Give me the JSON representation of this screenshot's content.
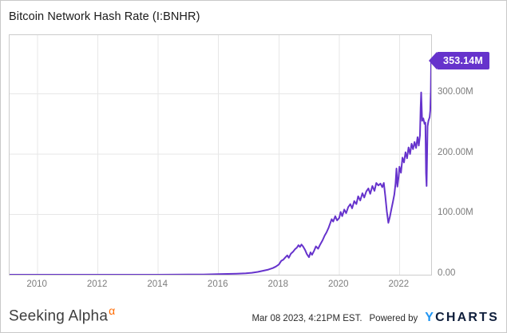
{
  "header": {
    "title": "Bitcoin Network Hash Rate (I:BNHR)"
  },
  "badge": {
    "label": "353.14M",
    "color": "#6633cc"
  },
  "footer": {
    "brand": "Seeking Alpha",
    "brand_alpha": "α",
    "brand_alpha_color": "#ff6a00",
    "timestamp": "Mar 08 2023, 4:21PM EST.",
    "powered_by": "Powered by",
    "ycharts_y": "Y",
    "ycharts_rest": "CHARTS",
    "ycharts_y_color": "#2196f3",
    "ycharts_rest_color": "#101f3c"
  },
  "chart_data": {
    "type": "line",
    "title": "Bitcoin Network Hash Rate (I:BNHR)",
    "series_name": "Bitcoin Network Hash Rate",
    "unit": "M",
    "line_color": "#6633cc",
    "grid": true,
    "grid_color": "#e7e7e7",
    "legend_position": "none",
    "last_value_label": "353.14M",
    "x_range": [
      2009.07,
      2023.05
    ],
    "y_range": [
      0,
      397
    ],
    "x_ticks": [
      {
        "value": 2010,
        "label": "2010"
      },
      {
        "value": 2012,
        "label": "2012"
      },
      {
        "value": 2014,
        "label": "2014"
      },
      {
        "value": 2016,
        "label": "2016"
      },
      {
        "value": 2018,
        "label": "2018"
      },
      {
        "value": 2020,
        "label": "2020"
      },
      {
        "value": 2022,
        "label": "2022"
      }
    ],
    "y_ticks": [
      {
        "value": 300,
        "label": "300.00M"
      },
      {
        "value": 200,
        "label": "200.00M"
      },
      {
        "value": 100,
        "label": "100.00M"
      },
      {
        "value": 0,
        "label": "0.00"
      }
    ],
    "points": [
      [
        2009.07,
        0
      ],
      [
        2010,
        0
      ],
      [
        2011,
        0
      ],
      [
        2012,
        0
      ],
      [
        2013,
        0
      ],
      [
        2013.5,
        0.01
      ],
      [
        2014,
        0.03
      ],
      [
        2014.5,
        0.1
      ],
      [
        2015,
        0.3
      ],
      [
        2015.5,
        0.45
      ],
      [
        2016,
        0.9
      ],
      [
        2016.3,
        1.3
      ],
      [
        2016.6,
        1.7
      ],
      [
        2016.9,
        2.4
      ],
      [
        2017.1,
        3.2
      ],
      [
        2017.3,
        4.6
      ],
      [
        2017.5,
        6.8
      ],
      [
        2017.65,
        8.5
      ],
      [
        2017.8,
        11
      ],
      [
        2017.9,
        13.5
      ],
      [
        2018.0,
        17
      ],
      [
        2018.08,
        23
      ],
      [
        2018.15,
        25
      ],
      [
        2018.22,
        29
      ],
      [
        2018.28,
        32
      ],
      [
        2018.33,
        28
      ],
      [
        2018.4,
        35
      ],
      [
        2018.47,
        38
      ],
      [
        2018.53,
        42
      ],
      [
        2018.6,
        45
      ],
      [
        2018.65,
        49
      ],
      [
        2018.7,
        46
      ],
      [
        2018.75,
        50
      ],
      [
        2018.8,
        47
      ],
      [
        2018.87,
        41
      ],
      [
        2018.93,
        34
      ],
      [
        2019.0,
        29
      ],
      [
        2019.05,
        37
      ],
      [
        2019.1,
        33
      ],
      [
        2019.17,
        40
      ],
      [
        2019.23,
        47
      ],
      [
        2019.3,
        43
      ],
      [
        2019.37,
        50
      ],
      [
        2019.45,
        57
      ],
      [
        2019.52,
        65
      ],
      [
        2019.58,
        70
      ],
      [
        2019.65,
        78
      ],
      [
        2019.7,
        85
      ],
      [
        2019.75,
        92
      ],
      [
        2019.8,
        88
      ],
      [
        2019.87,
        97
      ],
      [
        2019.93,
        90
      ],
      [
        2020.0,
        94
      ],
      [
        2020.05,
        104
      ],
      [
        2020.1,
        97
      ],
      [
        2020.17,
        108
      ],
      [
        2020.23,
        102
      ],
      [
        2020.3,
        112
      ],
      [
        2020.37,
        117
      ],
      [
        2020.43,
        110
      ],
      [
        2020.5,
        122
      ],
      [
        2020.57,
        117
      ],
      [
        2020.63,
        130
      ],
      [
        2020.7,
        123
      ],
      [
        2020.77,
        135
      ],
      [
        2020.83,
        128
      ],
      [
        2020.9,
        138
      ],
      [
        2020.97,
        143
      ],
      [
        2021.03,
        134
      ],
      [
        2021.1,
        147
      ],
      [
        2021.17,
        139
      ],
      [
        2021.23,
        152
      ],
      [
        2021.3,
        148
      ],
      [
        2021.37,
        151
      ],
      [
        2021.43,
        145
      ],
      [
        2021.48,
        152
      ],
      [
        2021.53,
        130
      ],
      [
        2021.58,
        105
      ],
      [
        2021.63,
        86
      ],
      [
        2021.68,
        96
      ],
      [
        2021.73,
        108
      ],
      [
        2021.78,
        120
      ],
      [
        2021.83,
        133
      ],
      [
        2021.87,
        151
      ],
      [
        2021.9,
        176
      ],
      [
        2021.93,
        146
      ],
      [
        2021.97,
        161
      ],
      [
        2022.0,
        179
      ],
      [
        2022.05,
        169
      ],
      [
        2022.1,
        194
      ],
      [
        2022.15,
        186
      ],
      [
        2022.2,
        203
      ],
      [
        2022.25,
        193
      ],
      [
        2022.3,
        211
      ],
      [
        2022.35,
        200
      ],
      [
        2022.4,
        217
      ],
      [
        2022.45,
        208
      ],
      [
        2022.5,
        220
      ],
      [
        2022.55,
        210
      ],
      [
        2022.6,
        228
      ],
      [
        2022.64,
        214
      ],
      [
        2022.68,
        231
      ],
      [
        2022.7,
        276
      ],
      [
        2022.72,
        302
      ],
      [
        2022.75,
        255
      ],
      [
        2022.79,
        259
      ],
      [
        2022.83,
        250
      ],
      [
        2022.86,
        252
      ],
      [
        2022.88,
        168
      ],
      [
        2022.9,
        147
      ],
      [
        2022.93,
        246
      ],
      [
        2022.96,
        255
      ],
      [
        2023.0,
        261
      ],
      [
        2023.02,
        272
      ],
      [
        2023.04,
        305
      ],
      [
        2023.05,
        353.14
      ]
    ]
  }
}
